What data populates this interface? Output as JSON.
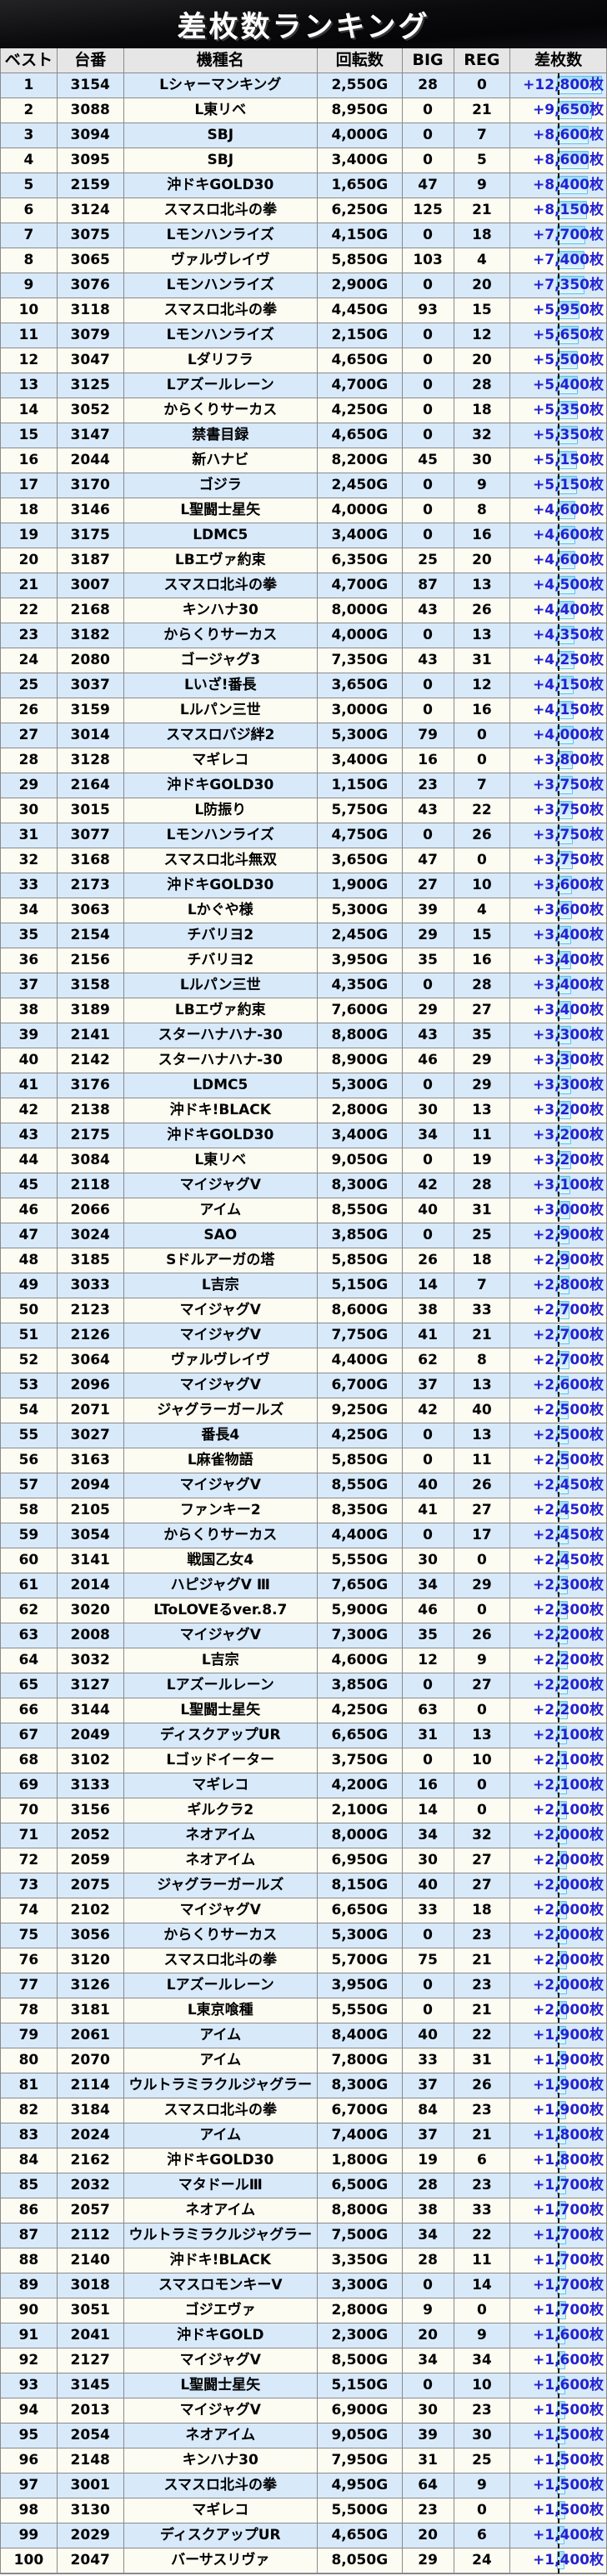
{
  "title": "差枚数ランキング",
  "colors": {
    "diff_text": "#2321d0",
    "row_stripe_blue": "#d8e9fa",
    "row_stripe_white": "#fdfcf2",
    "bar_border": "#59c4e7",
    "bar_fill": "#9ed8f6",
    "header_bg": "#e6e6e6",
    "banner_bg": "#0b0b0e"
  },
  "table": {
    "columns": [
      {
        "key": "rank",
        "label": "ベスト"
      },
      {
        "key": "machine_no",
        "label": "台番"
      },
      {
        "key": "model",
        "label": "機種名"
      },
      {
        "key": "spins",
        "label": "回転数"
      },
      {
        "key": "big",
        "label": "BIG"
      },
      {
        "key": "reg",
        "label": "REG"
      },
      {
        "key": "diff",
        "label": "差枚数"
      }
    ],
    "rows": [
      {
        "rank": 1,
        "machine_no": "3154",
        "model": "Lシャーマンキング",
        "spins": "2,550G",
        "big": "28",
        "reg": "0",
        "diff": "+12,800枚"
      },
      {
        "rank": 2,
        "machine_no": "3088",
        "model": "L東リベ",
        "spins": "8,950G",
        "big": "0",
        "reg": "21",
        "diff": "+9,650枚"
      },
      {
        "rank": 3,
        "machine_no": "3094",
        "model": "SBJ",
        "spins": "4,000G",
        "big": "0",
        "reg": "7",
        "diff": "+8,600枚"
      },
      {
        "rank": 4,
        "machine_no": "3095",
        "model": "SBJ",
        "spins": "3,400G",
        "big": "0",
        "reg": "5",
        "diff": "+8,600枚"
      },
      {
        "rank": 5,
        "machine_no": "2159",
        "model": "沖ドキGOLD30",
        "spins": "1,650G",
        "big": "47",
        "reg": "9",
        "diff": "+8,400枚"
      },
      {
        "rank": 6,
        "machine_no": "3124",
        "model": "スマスロ北斗の拳",
        "spins": "6,250G",
        "big": "125",
        "reg": "21",
        "diff": "+8,150枚"
      },
      {
        "rank": 7,
        "machine_no": "3075",
        "model": "Lモンハンライズ",
        "spins": "4,150G",
        "big": "0",
        "reg": "18",
        "diff": "+7,700枚"
      },
      {
        "rank": 8,
        "machine_no": "3065",
        "model": "ヴァルヴレイヴ",
        "spins": "5,850G",
        "big": "103",
        "reg": "4",
        "diff": "+7,400枚"
      },
      {
        "rank": 9,
        "machine_no": "3076",
        "model": "Lモンハンライズ",
        "spins": "2,900G",
        "big": "0",
        "reg": "20",
        "diff": "+7,350枚"
      },
      {
        "rank": 10,
        "machine_no": "3118",
        "model": "スマスロ北斗の拳",
        "spins": "4,450G",
        "big": "93",
        "reg": "15",
        "diff": "+5,950枚"
      },
      {
        "rank": 11,
        "machine_no": "3079",
        "model": "Lモンハンライズ",
        "spins": "2,150G",
        "big": "0",
        "reg": "12",
        "diff": "+5,650枚"
      },
      {
        "rank": 12,
        "machine_no": "3047",
        "model": "Lダリフラ",
        "spins": "4,650G",
        "big": "0",
        "reg": "20",
        "diff": "+5,500枚"
      },
      {
        "rank": 13,
        "machine_no": "3125",
        "model": "Lアズールレーン",
        "spins": "4,700G",
        "big": "0",
        "reg": "28",
        "diff": "+5,400枚"
      },
      {
        "rank": 14,
        "machine_no": "3052",
        "model": "からくりサーカス",
        "spins": "4,250G",
        "big": "0",
        "reg": "18",
        "diff": "+5,350枚"
      },
      {
        "rank": 15,
        "machine_no": "3147",
        "model": "禁書目録",
        "spins": "4,650G",
        "big": "0",
        "reg": "32",
        "diff": "+5,350枚"
      },
      {
        "rank": 16,
        "machine_no": "2044",
        "model": "新ハナビ",
        "spins": "8,200G",
        "big": "45",
        "reg": "30",
        "diff": "+5,150枚"
      },
      {
        "rank": 17,
        "machine_no": "3170",
        "model": "ゴジラ",
        "spins": "2,450G",
        "big": "0",
        "reg": "9",
        "diff": "+5,150枚"
      },
      {
        "rank": 18,
        "machine_no": "3146",
        "model": "L聖闘士星矢",
        "spins": "4,000G",
        "big": "0",
        "reg": "8",
        "diff": "+4,600枚"
      },
      {
        "rank": 19,
        "machine_no": "3175",
        "model": "LDMC5",
        "spins": "3,400G",
        "big": "0",
        "reg": "16",
        "diff": "+4,600枚"
      },
      {
        "rank": 20,
        "machine_no": "3187",
        "model": "LBエヴァ約束",
        "spins": "6,350G",
        "big": "25",
        "reg": "20",
        "diff": "+4,600枚"
      },
      {
        "rank": 21,
        "machine_no": "3007",
        "model": "スマスロ北斗の拳",
        "spins": "4,700G",
        "big": "87",
        "reg": "13",
        "diff": "+4,500枚"
      },
      {
        "rank": 22,
        "machine_no": "2168",
        "model": "キンハナ30",
        "spins": "8,000G",
        "big": "43",
        "reg": "26",
        "diff": "+4,400枚"
      },
      {
        "rank": 23,
        "machine_no": "3182",
        "model": "からくりサーカス",
        "spins": "4,000G",
        "big": "0",
        "reg": "13",
        "diff": "+4,350枚"
      },
      {
        "rank": 24,
        "machine_no": "2080",
        "model": "ゴージャグ3",
        "spins": "7,350G",
        "big": "43",
        "reg": "31",
        "diff": "+4,250枚"
      },
      {
        "rank": 25,
        "machine_no": "3037",
        "model": "Lいざ!番長",
        "spins": "3,650G",
        "big": "0",
        "reg": "12",
        "diff": "+4,150枚"
      },
      {
        "rank": 26,
        "machine_no": "3159",
        "model": "Lルパン三世",
        "spins": "3,000G",
        "big": "0",
        "reg": "16",
        "diff": "+4,150枚"
      },
      {
        "rank": 27,
        "machine_no": "3014",
        "model": "スマスロバジ絆2",
        "spins": "5,300G",
        "big": "79",
        "reg": "0",
        "diff": "+4,000枚"
      },
      {
        "rank": 28,
        "machine_no": "3128",
        "model": "マギレコ",
        "spins": "3,400G",
        "big": "16",
        "reg": "0",
        "diff": "+3,800枚"
      },
      {
        "rank": 29,
        "machine_no": "2164",
        "model": "沖ドキGOLD30",
        "spins": "1,150G",
        "big": "23",
        "reg": "7",
        "diff": "+3,750枚"
      },
      {
        "rank": 30,
        "machine_no": "3015",
        "model": "L防振り",
        "spins": "5,750G",
        "big": "43",
        "reg": "22",
        "diff": "+3,750枚"
      },
      {
        "rank": 31,
        "machine_no": "3077",
        "model": "Lモンハンライズ",
        "spins": "4,750G",
        "big": "0",
        "reg": "26",
        "diff": "+3,750枚"
      },
      {
        "rank": 32,
        "machine_no": "3168",
        "model": "スマスロ北斗無双",
        "spins": "3,650G",
        "big": "47",
        "reg": "0",
        "diff": "+3,750枚"
      },
      {
        "rank": 33,
        "machine_no": "2173",
        "model": "沖ドキGOLD30",
        "spins": "1,900G",
        "big": "27",
        "reg": "10",
        "diff": "+3,600枚"
      },
      {
        "rank": 34,
        "machine_no": "3063",
        "model": "Lかぐや様",
        "spins": "5,300G",
        "big": "39",
        "reg": "4",
        "diff": "+3,600枚"
      },
      {
        "rank": 35,
        "machine_no": "2154",
        "model": "チバリヨ2",
        "spins": "2,450G",
        "big": "29",
        "reg": "15",
        "diff": "+3,400枚"
      },
      {
        "rank": 36,
        "machine_no": "2156",
        "model": "チバリヨ2",
        "spins": "3,950G",
        "big": "35",
        "reg": "16",
        "diff": "+3,400枚"
      },
      {
        "rank": 37,
        "machine_no": "3158",
        "model": "Lルパン三世",
        "spins": "4,350G",
        "big": "0",
        "reg": "28",
        "diff": "+3,400枚"
      },
      {
        "rank": 38,
        "machine_no": "3189",
        "model": "LBエヴァ約束",
        "spins": "7,600G",
        "big": "29",
        "reg": "27",
        "diff": "+3,400枚"
      },
      {
        "rank": 39,
        "machine_no": "2141",
        "model": "スターハナハナ-30",
        "spins": "8,800G",
        "big": "43",
        "reg": "35",
        "diff": "+3,300枚"
      },
      {
        "rank": 40,
        "machine_no": "2142",
        "model": "スターハナハナ-30",
        "spins": "8,900G",
        "big": "46",
        "reg": "29",
        "diff": "+3,300枚"
      },
      {
        "rank": 41,
        "machine_no": "3176",
        "model": "LDMC5",
        "spins": "5,300G",
        "big": "0",
        "reg": "29",
        "diff": "+3,300枚"
      },
      {
        "rank": 42,
        "machine_no": "2138",
        "model": "沖ドキ!BLACK",
        "spins": "2,800G",
        "big": "30",
        "reg": "13",
        "diff": "+3,200枚"
      },
      {
        "rank": 43,
        "machine_no": "2175",
        "model": "沖ドキGOLD30",
        "spins": "3,400G",
        "big": "34",
        "reg": "11",
        "diff": "+3,200枚"
      },
      {
        "rank": 44,
        "machine_no": "3084",
        "model": "L東リベ",
        "spins": "9,050G",
        "big": "0",
        "reg": "19",
        "diff": "+3,200枚"
      },
      {
        "rank": 45,
        "machine_no": "2118",
        "model": "マイジャグV",
        "spins": "8,300G",
        "big": "42",
        "reg": "28",
        "diff": "+3,100枚"
      },
      {
        "rank": 46,
        "machine_no": "2066",
        "model": "アイム",
        "spins": "8,550G",
        "big": "40",
        "reg": "31",
        "diff": "+3,000枚"
      },
      {
        "rank": 47,
        "machine_no": "3024",
        "model": "SAO",
        "spins": "3,850G",
        "big": "0",
        "reg": "25",
        "diff": "+2,900枚"
      },
      {
        "rank": 48,
        "machine_no": "3185",
        "model": "Sドルアーガの塔",
        "spins": "5,850G",
        "big": "26",
        "reg": "18",
        "diff": "+2,900枚"
      },
      {
        "rank": 49,
        "machine_no": "3033",
        "model": "L吉宗",
        "spins": "5,150G",
        "big": "14",
        "reg": "7",
        "diff": "+2,800枚"
      },
      {
        "rank": 50,
        "machine_no": "2123",
        "model": "マイジャグV",
        "spins": "8,600G",
        "big": "38",
        "reg": "33",
        "diff": "+2,700枚"
      },
      {
        "rank": 51,
        "machine_no": "2126",
        "model": "マイジャグV",
        "spins": "7,750G",
        "big": "41",
        "reg": "21",
        "diff": "+2,700枚"
      },
      {
        "rank": 52,
        "machine_no": "3064",
        "model": "ヴァルヴレイヴ",
        "spins": "4,400G",
        "big": "62",
        "reg": "8",
        "diff": "+2,700枚"
      },
      {
        "rank": 53,
        "machine_no": "2096",
        "model": "マイジャグV",
        "spins": "6,700G",
        "big": "37",
        "reg": "13",
        "diff": "+2,600枚"
      },
      {
        "rank": 54,
        "machine_no": "2071",
        "model": "ジャグラーガールズ",
        "spins": "9,250G",
        "big": "42",
        "reg": "40",
        "diff": "+2,500枚"
      },
      {
        "rank": 55,
        "machine_no": "3027",
        "model": "番長4",
        "spins": "4,250G",
        "big": "0",
        "reg": "13",
        "diff": "+2,500枚"
      },
      {
        "rank": 56,
        "machine_no": "3163",
        "model": "L麻雀物語",
        "spins": "5,850G",
        "big": "0",
        "reg": "11",
        "diff": "+2,500枚"
      },
      {
        "rank": 57,
        "machine_no": "2094",
        "model": "マイジャグV",
        "spins": "8,550G",
        "big": "40",
        "reg": "26",
        "diff": "+2,450枚"
      },
      {
        "rank": 58,
        "machine_no": "2105",
        "model": "ファンキー2",
        "spins": "8,350G",
        "big": "41",
        "reg": "27",
        "diff": "+2,450枚"
      },
      {
        "rank": 59,
        "machine_no": "3054",
        "model": "からくりサーカス",
        "spins": "4,400G",
        "big": "0",
        "reg": "17",
        "diff": "+2,450枚"
      },
      {
        "rank": 60,
        "machine_no": "3141",
        "model": "戦国乙女4",
        "spins": "5,550G",
        "big": "30",
        "reg": "0",
        "diff": "+2,450枚"
      },
      {
        "rank": 61,
        "machine_no": "2014",
        "model": "ハピジャグV Ⅲ",
        "spins": "7,650G",
        "big": "34",
        "reg": "29",
        "diff": "+2,300枚"
      },
      {
        "rank": 62,
        "machine_no": "3020",
        "model": "LToLOVEるver.8.7",
        "spins": "5,900G",
        "big": "46",
        "reg": "0",
        "diff": "+2,300枚"
      },
      {
        "rank": 63,
        "machine_no": "2008",
        "model": "マイジャグV",
        "spins": "7,300G",
        "big": "35",
        "reg": "26",
        "diff": "+2,200枚"
      },
      {
        "rank": 64,
        "machine_no": "3032",
        "model": "L吉宗",
        "spins": "4,600G",
        "big": "12",
        "reg": "9",
        "diff": "+2,200枚"
      },
      {
        "rank": 65,
        "machine_no": "3127",
        "model": "Lアズールレーン",
        "spins": "3,850G",
        "big": "0",
        "reg": "27",
        "diff": "+2,200枚"
      },
      {
        "rank": 66,
        "machine_no": "3144",
        "model": "L聖闘士星矢",
        "spins": "4,250G",
        "big": "63",
        "reg": "0",
        "diff": "+2,200枚"
      },
      {
        "rank": 67,
        "machine_no": "2049",
        "model": "ディスクアップUR",
        "spins": "6,650G",
        "big": "31",
        "reg": "13",
        "diff": "+2,100枚"
      },
      {
        "rank": 68,
        "machine_no": "3102",
        "model": "Lゴッドイーター",
        "spins": "3,750G",
        "big": "0",
        "reg": "10",
        "diff": "+2,100枚"
      },
      {
        "rank": 69,
        "machine_no": "3133",
        "model": "マギレコ",
        "spins": "4,200G",
        "big": "16",
        "reg": "0",
        "diff": "+2,100枚"
      },
      {
        "rank": 70,
        "machine_no": "3156",
        "model": "ギルクラ2",
        "spins": "2,100G",
        "big": "14",
        "reg": "0",
        "diff": "+2,100枚"
      },
      {
        "rank": 71,
        "machine_no": "2052",
        "model": "ネオアイム",
        "spins": "8,000G",
        "big": "34",
        "reg": "32",
        "diff": "+2,000枚"
      },
      {
        "rank": 72,
        "machine_no": "2059",
        "model": "ネオアイム",
        "spins": "6,950G",
        "big": "30",
        "reg": "27",
        "diff": "+2,000枚"
      },
      {
        "rank": 73,
        "machine_no": "2075",
        "model": "ジャグラーガールズ",
        "spins": "8,150G",
        "big": "40",
        "reg": "27",
        "diff": "+2,000枚"
      },
      {
        "rank": 74,
        "machine_no": "2102",
        "model": "マイジャグV",
        "spins": "6,650G",
        "big": "33",
        "reg": "18",
        "diff": "+2,000枚"
      },
      {
        "rank": 75,
        "machine_no": "3056",
        "model": "からくりサーカス",
        "spins": "5,300G",
        "big": "0",
        "reg": "23",
        "diff": "+2,000枚"
      },
      {
        "rank": 76,
        "machine_no": "3120",
        "model": "スマスロ北斗の拳",
        "spins": "5,700G",
        "big": "75",
        "reg": "21",
        "diff": "+2,000枚"
      },
      {
        "rank": 77,
        "machine_no": "3126",
        "model": "Lアズールレーン",
        "spins": "3,950G",
        "big": "0",
        "reg": "23",
        "diff": "+2,000枚"
      },
      {
        "rank": 78,
        "machine_no": "3181",
        "model": "L東京喰種",
        "spins": "5,550G",
        "big": "0",
        "reg": "21",
        "diff": "+2,000枚"
      },
      {
        "rank": 79,
        "machine_no": "2061",
        "model": "アイム",
        "spins": "8,400G",
        "big": "40",
        "reg": "22",
        "diff": "+1,900枚"
      },
      {
        "rank": 80,
        "machine_no": "2070",
        "model": "アイム",
        "spins": "7,800G",
        "big": "33",
        "reg": "31",
        "diff": "+1,900枚"
      },
      {
        "rank": 81,
        "machine_no": "2114",
        "model": "ウルトラミラクルジャグラー",
        "spins": "8,300G",
        "big": "37",
        "reg": "26",
        "diff": "+1,900枚"
      },
      {
        "rank": 82,
        "machine_no": "3184",
        "model": "スマスロ北斗の拳",
        "spins": "6,700G",
        "big": "84",
        "reg": "23",
        "diff": "+1,900枚"
      },
      {
        "rank": 83,
        "machine_no": "2024",
        "model": "アイム",
        "spins": "7,400G",
        "big": "37",
        "reg": "21",
        "diff": "+1,800枚"
      },
      {
        "rank": 84,
        "machine_no": "2162",
        "model": "沖ドキGOLD30",
        "spins": "1,800G",
        "big": "19",
        "reg": "6",
        "diff": "+1,800枚"
      },
      {
        "rank": 85,
        "machine_no": "2032",
        "model": "マタドールⅢ",
        "spins": "6,500G",
        "big": "28",
        "reg": "23",
        "diff": "+1,700枚"
      },
      {
        "rank": 86,
        "machine_no": "2057",
        "model": "ネオアイム",
        "spins": "8,800G",
        "big": "38",
        "reg": "33",
        "diff": "+1,700枚"
      },
      {
        "rank": 87,
        "machine_no": "2112",
        "model": "ウルトラミラクルジャグラー",
        "spins": "7,500G",
        "big": "34",
        "reg": "22",
        "diff": "+1,700枚"
      },
      {
        "rank": 88,
        "machine_no": "2140",
        "model": "沖ドキ!BLACK",
        "spins": "3,350G",
        "big": "28",
        "reg": "11",
        "diff": "+1,700枚"
      },
      {
        "rank": 89,
        "machine_no": "3018",
        "model": "スマスロモンキーV",
        "spins": "3,300G",
        "big": "0",
        "reg": "14",
        "diff": "+1,700枚"
      },
      {
        "rank": 90,
        "machine_no": "3051",
        "model": "ゴジエヴァ",
        "spins": "2,800G",
        "big": "9",
        "reg": "0",
        "diff": "+1,700枚"
      },
      {
        "rank": 91,
        "machine_no": "2041",
        "model": "沖ドキGOLD",
        "spins": "2,300G",
        "big": "20",
        "reg": "9",
        "diff": "+1,600枚"
      },
      {
        "rank": 92,
        "machine_no": "2127",
        "model": "マイジャグV",
        "spins": "8,500G",
        "big": "34",
        "reg": "34",
        "diff": "+1,600枚"
      },
      {
        "rank": 93,
        "machine_no": "3145",
        "model": "L聖闘士星矢",
        "spins": "5,150G",
        "big": "0",
        "reg": "10",
        "diff": "+1,600枚"
      },
      {
        "rank": 94,
        "machine_no": "2013",
        "model": "マイジャグV",
        "spins": "6,900G",
        "big": "30",
        "reg": "23",
        "diff": "+1,500枚"
      },
      {
        "rank": 95,
        "machine_no": "2054",
        "model": "ネオアイム",
        "spins": "9,050G",
        "big": "39",
        "reg": "30",
        "diff": "+1,500枚"
      },
      {
        "rank": 96,
        "machine_no": "2148",
        "model": "キンハナ30",
        "spins": "7,950G",
        "big": "31",
        "reg": "25",
        "diff": "+1,500枚"
      },
      {
        "rank": 97,
        "machine_no": "3001",
        "model": "スマスロ北斗の拳",
        "spins": "4,950G",
        "big": "64",
        "reg": "9",
        "diff": "+1,500枚"
      },
      {
        "rank": 98,
        "machine_no": "3130",
        "model": "マギレコ",
        "spins": "5,500G",
        "big": "23",
        "reg": "0",
        "diff": "+1,500枚"
      },
      {
        "rank": 99,
        "machine_no": "2029",
        "model": "ディスクアップUR",
        "spins": "4,650G",
        "big": "20",
        "reg": "6",
        "diff": "+1,400枚"
      },
      {
        "rank": 100,
        "machine_no": "2047",
        "model": "バーサスリヴァ",
        "spins": "8,050G",
        "big": "29",
        "reg": "24",
        "diff": "+1,400枚"
      }
    ]
  }
}
